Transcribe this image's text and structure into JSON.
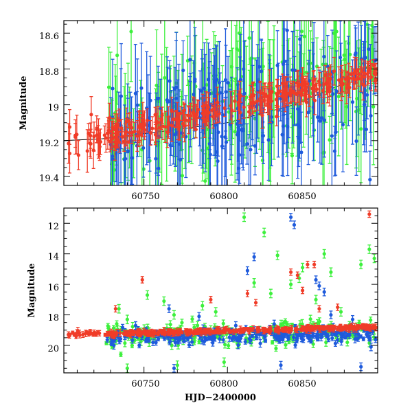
{
  "colors": {
    "red": "#f03c28",
    "green": "#3cf03c",
    "blue": "#1e5adc",
    "axis": "#000000",
    "background": "#ffffff"
  },
  "chart_data": [
    {
      "type": "scatter",
      "xlabel": "",
      "ylabel": "Magnitude",
      "xlim": [
        60702,
        60890
      ],
      "ylim": [
        19.45,
        18.53
      ],
      "y_inverted": true,
      "x_ticks": [
        60750,
        60800,
        60850
      ],
      "x_tick_labels": [
        "60750",
        "60800",
        "60850"
      ],
      "y_ticks": [
        18.6,
        18.8,
        19.0,
        19.2,
        19.4
      ],
      "y_tick_labels": [
        "18.6",
        "18.8",
        "19",
        "19.2",
        "19.4"
      ],
      "model_line": {
        "x": [
          60702,
          60725,
          60760,
          60800,
          60840,
          60870,
          60890
        ],
        "y": [
          19.2,
          19.19,
          19.15,
          19.1,
          19.0,
          18.88,
          18.75
        ]
      },
      "series": [
        {
          "color": "green",
          "x_range": [
            60727,
            60889
          ],
          "trend": [
            19.18,
            18.82
          ],
          "scatter": 0.35,
          "errbar": 0.25,
          "n": 170
        },
        {
          "color": "blue",
          "x_range": [
            60727,
            60889
          ],
          "trend": [
            19.2,
            18.85
          ],
          "scatter": 0.3,
          "errbar": 0.22,
          "n": 200
        },
        {
          "color": "red",
          "x_range": [
            60704,
            60724
          ],
          "trend": [
            19.2,
            19.2
          ],
          "scatter": 0.1,
          "errbar": 0.08,
          "n": 22
        },
        {
          "color": "red",
          "x_range": [
            60726,
            60889
          ],
          "trend": [
            19.18,
            18.82
          ],
          "scatter": 0.07,
          "errbar": 0.06,
          "n": 260
        }
      ]
    },
    {
      "type": "scatter",
      "xlabel": "HJD−2400000",
      "ylabel": "Magnitude",
      "xlim": [
        60702,
        60890
      ],
      "ylim": [
        21.8,
        11.0
      ],
      "y_inverted": true,
      "x_ticks": [
        60750,
        60800,
        60850
      ],
      "x_tick_labels": [
        "60750",
        "60800",
        "60850"
      ],
      "y_ticks": [
        12,
        14,
        16,
        18,
        20
      ],
      "y_tick_labels": [
        "12",
        "14",
        "16",
        "18",
        "20"
      ],
      "series": [
        {
          "color": "green",
          "x_range": [
            60727,
            60889
          ],
          "trend": [
            19.4,
            19.0
          ],
          "scatter": 0.8,
          "errbar": 0.2,
          "n": 230,
          "outliers": {
            "x": [
              60735,
              60740,
              60752,
              60762,
              60768,
              60785,
              60793,
              60810,
              60816,
              60822,
              60826,
              60830,
              60838,
              60843,
              60845,
              60853,
              60858,
              60862,
              60868,
              60880,
              60885,
              60888,
              60740,
              60770,
              60798
            ],
            "y": [
              17.6,
              18.3,
              16.7,
              17.1,
              18.0,
              17.4,
              17.8,
              11.6,
              15.9,
              12.6,
              16.6,
              14.1,
              16.0,
              15.6,
              14.9,
              17.0,
              14.0,
              15.2,
              17.8,
              14.7,
              13.7,
              14.3,
              21.5,
              21.3,
              21.1
            ]
          }
        },
        {
          "color": "blue",
          "x_range": [
            60727,
            60889
          ],
          "trend": [
            19.5,
            19.2
          ],
          "scatter": 0.5,
          "errbar": 0.18,
          "n": 260,
          "outliers": {
            "x": [
              60745,
              60765,
              60783,
              60805,
              60812,
              60816,
              60828,
              60838,
              60840,
              60853,
              60855,
              60858,
              60862,
              60875,
              60880,
              60886,
              60768,
              60832
            ],
            "y": [
              18.7,
              17.6,
              18.1,
              18.7,
              15.1,
              14.2,
              18.6,
              11.6,
              12.1,
              15.7,
              16.1,
              16.5,
              18.0,
              18.3,
              21.4,
              20.1,
              21.5,
              21.3
            ]
          }
        },
        {
          "color": "red",
          "x_range": [
            60704,
            60724
          ],
          "trend": [
            19.25,
            19.25
          ],
          "scatter": 0.15,
          "errbar": 0.15,
          "n": 24
        },
        {
          "color": "red",
          "x_range": [
            60726,
            60889
          ],
          "trend": [
            19.25,
            18.8
          ],
          "scatter": 0.12,
          "errbar": 0.15,
          "n": 300,
          "outliers": {
            "x": [
              60733,
              60749,
              60790,
              60812,
              60817,
              60838,
              60842,
              60845,
              60848,
              60852,
              60855,
              60866,
              60885
            ],
            "y": [
              17.6,
              15.7,
              17.0,
              16.6,
              17.2,
              15.2,
              15.4,
              16.4,
              14.7,
              14.7,
              17.6,
              17.5,
              11.4
            ]
          }
        }
      ]
    }
  ]
}
